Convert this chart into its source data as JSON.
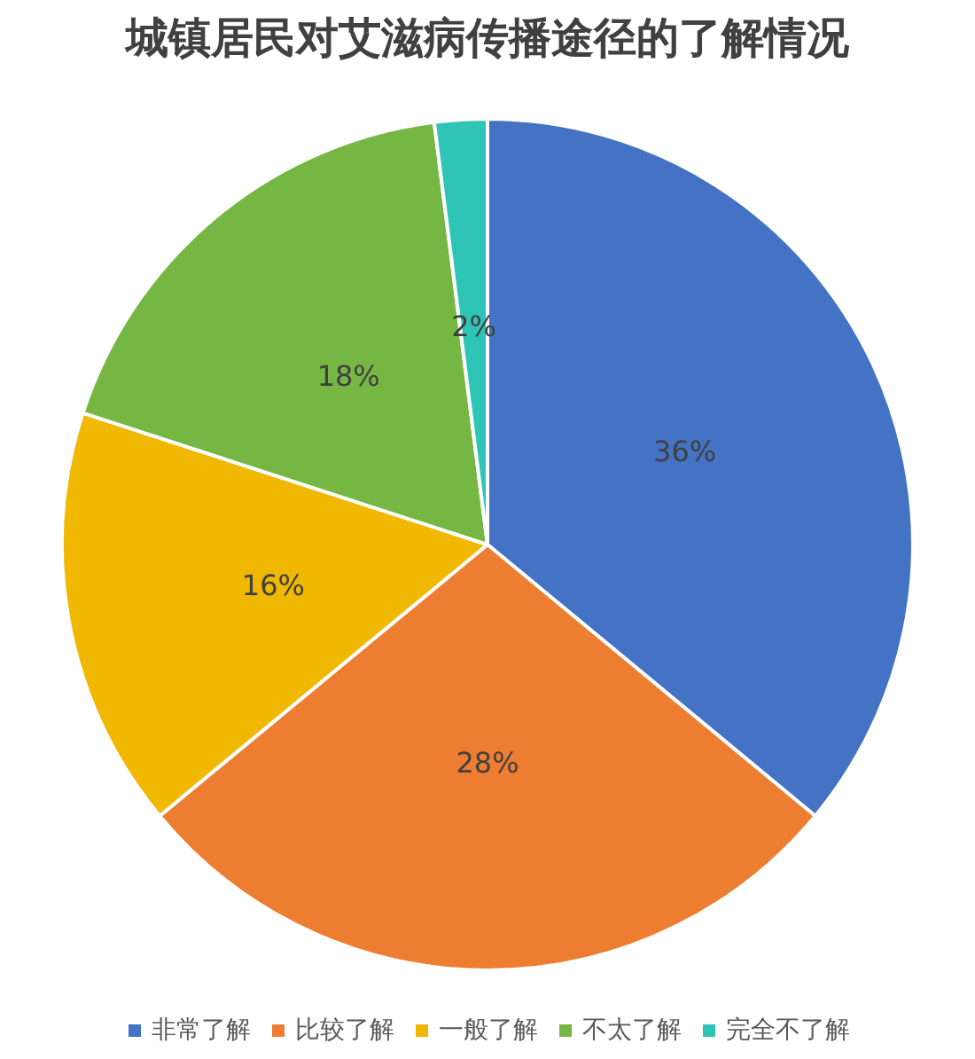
{
  "chart_data": {
    "type": "pie",
    "title": "城镇居民对艾滋病传播途径的了解情况",
    "categories": [
      "非常了解",
      "比较了解",
      "一般了解",
      "不太了解",
      "完全不了解"
    ],
    "values": [
      36,
      28,
      16,
      18,
      2
    ],
    "value_labels": [
      "36%",
      "28%",
      "16%",
      "18%",
      "2%"
    ],
    "colors": [
      "#4472c4",
      "#ed7d31",
      "#f0b800",
      "#76b743",
      "#2ec4b6"
    ],
    "legend": "bottom"
  }
}
